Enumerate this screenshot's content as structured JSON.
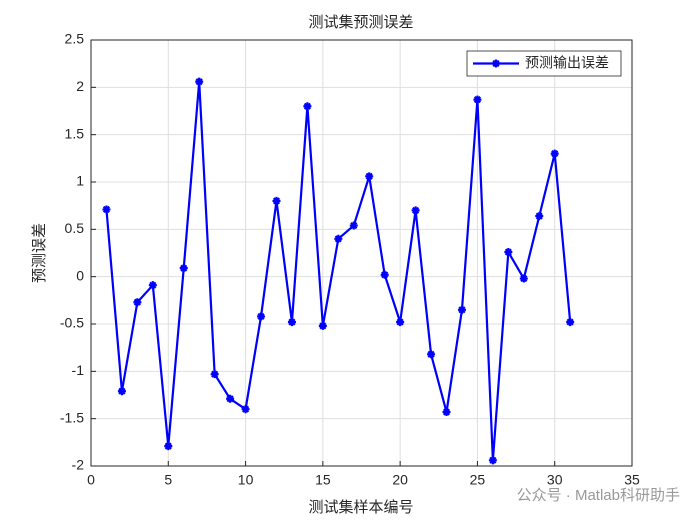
{
  "chart_data": {
    "type": "line",
    "title": "测试集预测误差",
    "x_label": "测试集样本编号",
    "y_label": "预测误差",
    "x": [
      1,
      2,
      3,
      4,
      5,
      6,
      7,
      8,
      9,
      10,
      11,
      12,
      13,
      14,
      15,
      16,
      17,
      18,
      19,
      20,
      21,
      22,
      23,
      24,
      25,
      26,
      27,
      28,
      29,
      30,
      31
    ],
    "series": [
      {
        "name": "预测输出误差",
        "color": "#0000ff",
        "values": [
          0.71,
          -1.21,
          -0.27,
          -0.09,
          -1.79,
          0.09,
          2.06,
          -1.03,
          -1.29,
          -1.4,
          -0.42,
          0.8,
          -0.48,
          1.8,
          -0.52,
          0.4,
          0.54,
          1.06,
          0.02,
          -0.48,
          0.7,
          -0.82,
          -1.43,
          -0.35,
          1.87,
          -1.94,
          0.26,
          -0.02,
          0.64,
          1.3,
          -0.48
        ]
      }
    ],
    "xlim": [
      0,
      35
    ],
    "xticks": [
      0,
      5,
      10,
      15,
      20,
      25,
      30,
      35
    ],
    "ylim": [
      -2,
      2.5
    ],
    "yticks": [
      -2,
      -1.5,
      -1,
      -0.5,
      0,
      0.5,
      1,
      1.5,
      2,
      2.5
    ],
    "grid": true,
    "legend_position": "upper right"
  },
  "watermark": "公众号 · Matlab科研助手"
}
